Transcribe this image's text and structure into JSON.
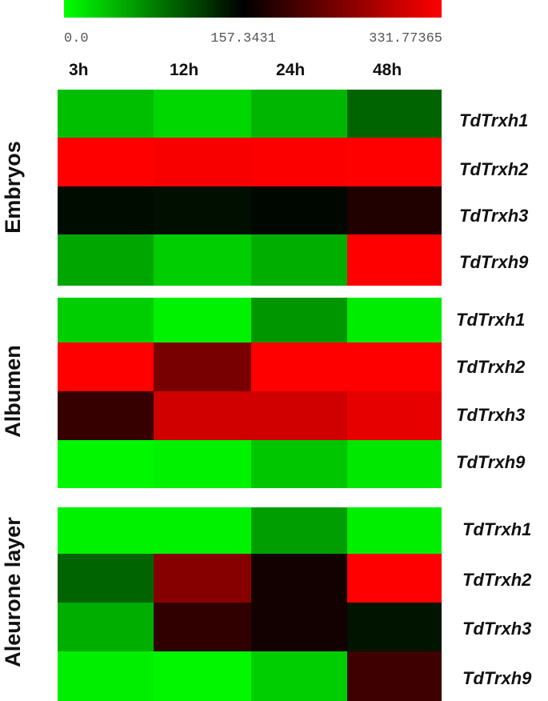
{
  "chart_data": {
    "type": "heatmap",
    "color_scale": {
      "min": 0.0,
      "mid": 157.3431,
      "max": 331.77365,
      "min_label": "0.0",
      "mid_label": "157.3431",
      "max_label": "331.77365",
      "low_color": "#00ff00",
      "mid_color": "#000000",
      "high_color": "#ff0000"
    },
    "columns": [
      "3h",
      "12h",
      "24h",
      "48h"
    ],
    "panels": [
      {
        "tissue": "Embryos",
        "genes": [
          "TdTrxh1",
          "TdTrxh2",
          "TdTrxh3",
          "TdTrxh9"
        ],
        "values": [
          [
            40,
            25,
            45,
            95
          ],
          [
            331,
            328,
            330,
            331
          ],
          [
            150,
            148,
            153,
            180
          ],
          [
            55,
            30,
            50,
            331
          ]
        ]
      },
      {
        "tissue": "Albumen",
        "genes": [
          "TdTrxh1",
          "TdTrxh2",
          "TdTrxh3",
          "TdTrxh9"
        ],
        "values": [
          [
            30,
            8,
            65,
            12
          ],
          [
            331,
            240,
            331,
            331
          ],
          [
            195,
            300,
            300,
            315
          ],
          [
            5,
            8,
            35,
            15
          ]
        ]
      },
      {
        "tissue": "Aleurone layer",
        "genes": [
          "TdTrxh1",
          "TdTrxh2",
          "TdTrxh3",
          "TdTrxh9"
        ],
        "values": [
          [
            8,
            8,
            60,
            10
          ],
          [
            95,
            250,
            170,
            331
          ],
          [
            50,
            190,
            170,
            145
          ],
          [
            10,
            5,
            30,
            200
          ]
        ]
      }
    ]
  }
}
